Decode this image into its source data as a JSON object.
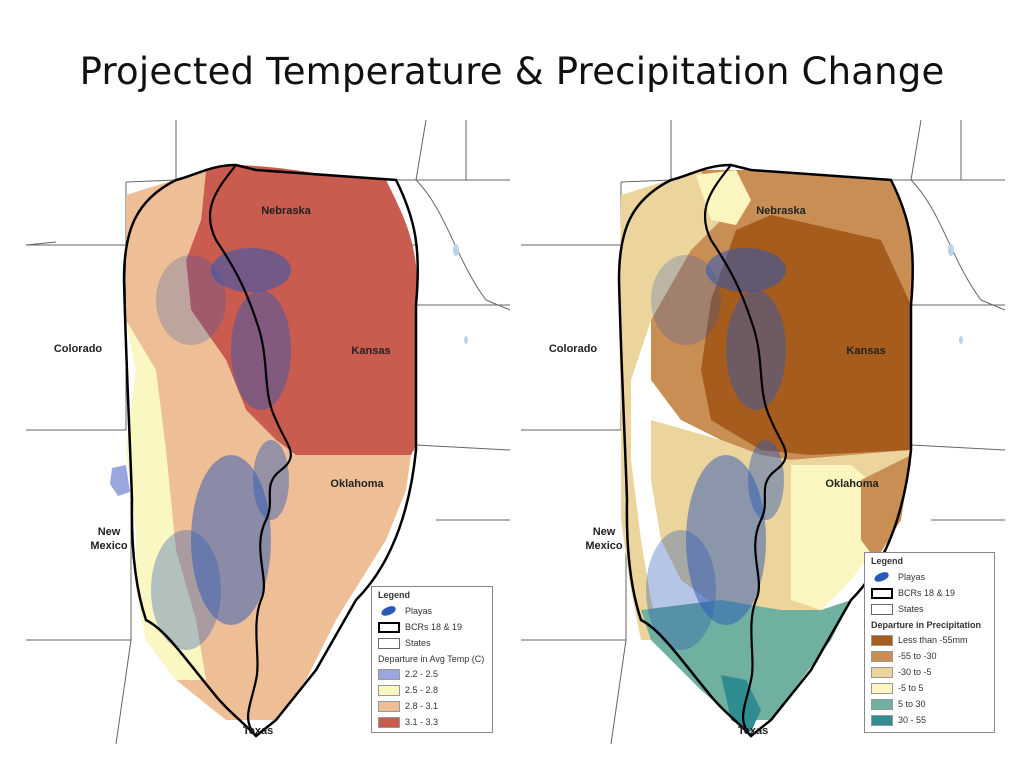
{
  "slide": {
    "title": "Projected Temperature & Precipitation Change"
  },
  "maps": [
    {
      "labels": {
        "nebraska": "Nebraska",
        "kansas": "Kansas",
        "colorado": "Colorado",
        "oklahoma": "Oklahoma",
        "new_mexico_1": "New",
        "new_mexico_2": "Mexico",
        "texas": "Texas"
      },
      "legend": {
        "title": "Legend",
        "playas": "Playas",
        "bcrs": "BCRs 18 & 19",
        "states": "States",
        "subtitle": "Departure in Avg Temp (C)",
        "classes": [
          {
            "label": "2.2 - 2.5",
            "color": "#9aa6de"
          },
          {
            "label": "2.5 - 2.8",
            "color": "#fbf7c2"
          },
          {
            "label": "2.8 - 3.1",
            "color": "#eebf96"
          },
          {
            "label": "3.1 - 3.3",
            "color": "#c95b4f"
          }
        ]
      }
    },
    {
      "labels": {
        "nebraska": "Nebraska",
        "kansas": "Kansas",
        "colorado": "Colorado",
        "oklahoma": "Oklahoma",
        "new_mexico_1": "New",
        "new_mexico_2": "Mexico",
        "texas": "Texas"
      },
      "legend": {
        "title": "Legend",
        "playas": "Playas",
        "bcrs": "BCRs 18 & 19",
        "states": "States",
        "subtitle": "Departure in Precipitation",
        "classes": [
          {
            "label": "Less than -55mm",
            "color": "#a65c1c"
          },
          {
            "label": "-55 to -30",
            "color": "#c98e54"
          },
          {
            "label": "-30 to -5",
            "color": "#ecd59c"
          },
          {
            "label": "-5 to 5",
            "color": "#fbf6c0"
          },
          {
            "label": "5 to 30",
            "color": "#6fb0a0"
          },
          {
            "label": "30 - 55",
            "color": "#2f8c90"
          }
        ]
      }
    }
  ],
  "colors": {
    "playa": "#2a58b8",
    "state_line": "#666666",
    "bcr_line": "#000000"
  }
}
